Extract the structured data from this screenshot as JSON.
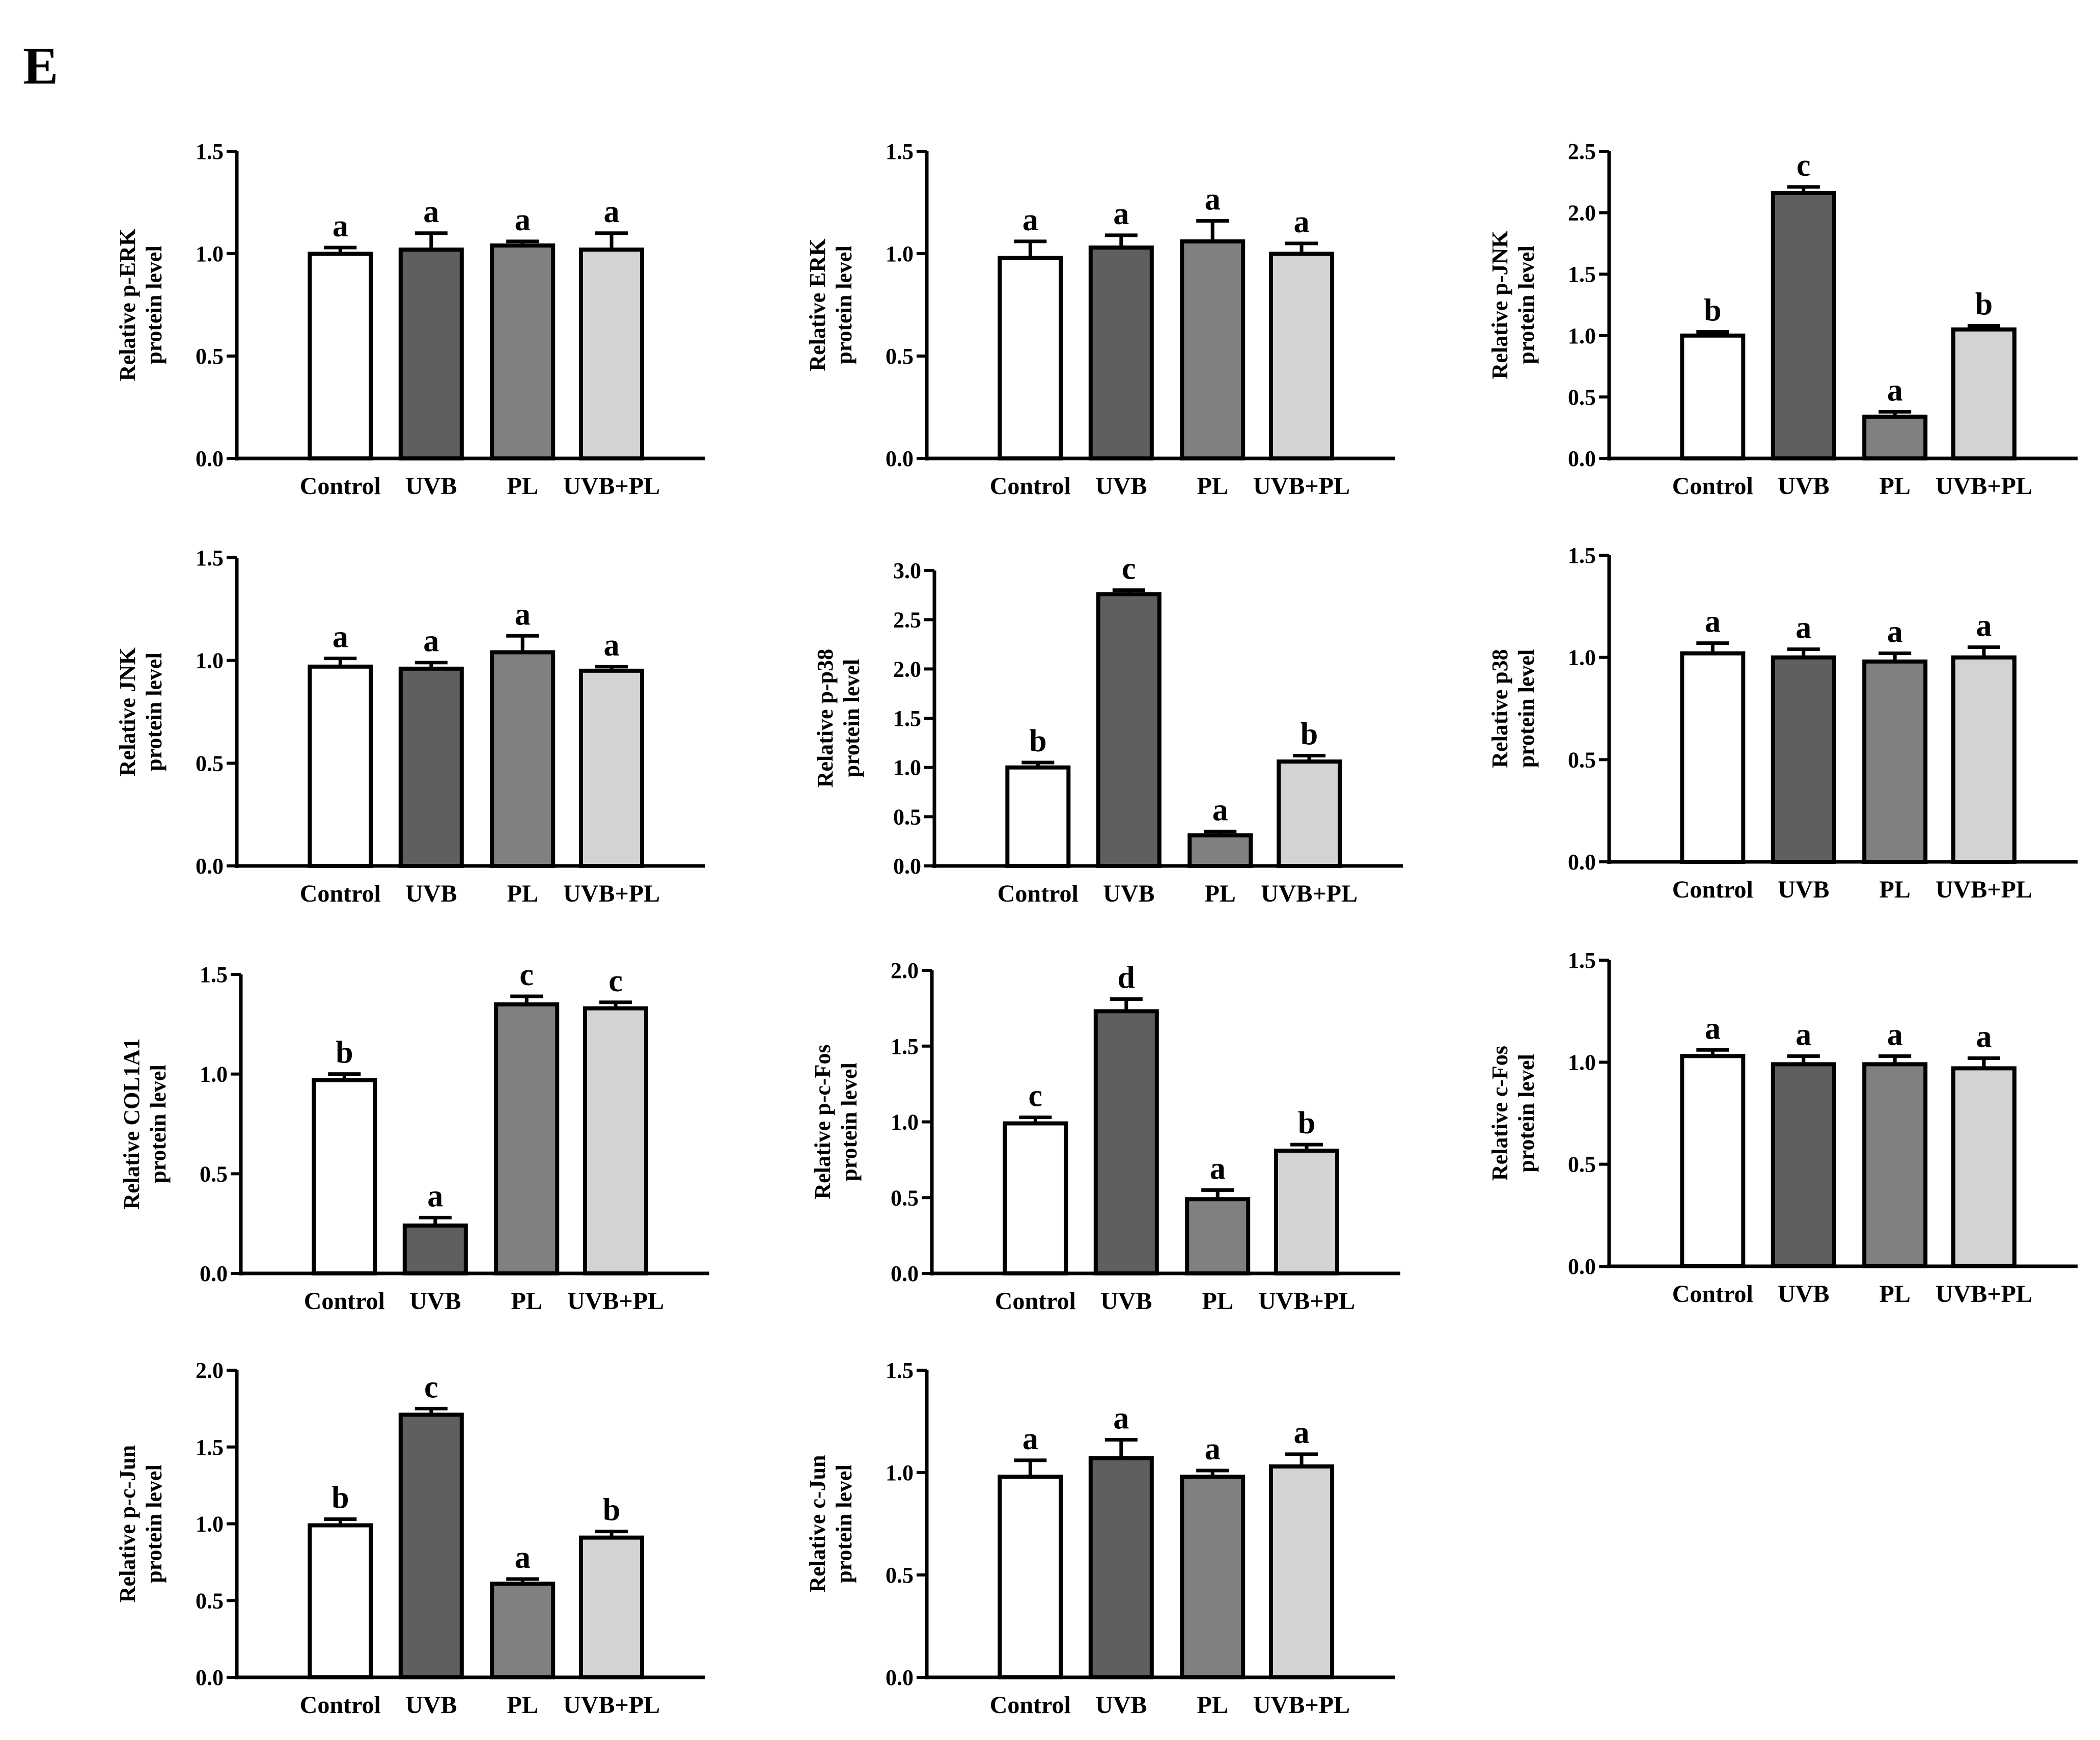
{
  "panel_label": "E",
  "bar_colors": [
    "#ffffff",
    "#5f5f5f",
    "#808080",
    "#d3d3d3"
  ],
  "chart_data": [
    {
      "type": "bar",
      "ylabel": [
        "Relative p-ERK",
        "protein level"
      ],
      "categories": [
        "Control",
        "UVB",
        "PL",
        "UVB+PL"
      ],
      "values": [
        1.0,
        1.02,
        1.04,
        1.02
      ],
      "errors": [
        0.03,
        0.08,
        0.02,
        0.08
      ],
      "letters": [
        "a",
        "a",
        "a",
        "a"
      ],
      "ylim": [
        0,
        1.5
      ],
      "ticks": [
        "0.0",
        "0.5",
        "1.0",
        "1.5"
      ]
    },
    {
      "type": "bar",
      "ylabel": [
        "Relative ERK",
        "protein level"
      ],
      "categories": [
        "Control",
        "UVB",
        "PL",
        "UVB+PL"
      ],
      "values": [
        0.98,
        1.03,
        1.06,
        1.0
      ],
      "errors": [
        0.08,
        0.06,
        0.1,
        0.05
      ],
      "letters": [
        "a",
        "a",
        "a",
        "a"
      ],
      "ylim": [
        0,
        1.5
      ],
      "ticks": [
        "0.0",
        "0.5",
        "1.0",
        "1.5"
      ]
    },
    {
      "type": "bar",
      "ylabel": [
        "Relative p-JNK",
        "protein level"
      ],
      "categories": [
        "Control",
        "UVB",
        "PL",
        "UVB+PL"
      ],
      "values": [
        1.0,
        2.16,
        0.34,
        1.05
      ],
      "errors": [
        0.03,
        0.05,
        0.04,
        0.03
      ],
      "letters": [
        "b",
        "c",
        "a",
        "b"
      ],
      "ylim": [
        0,
        2.5
      ],
      "ticks": [
        "0.0",
        "0.5",
        "1.0",
        "1.5",
        "2.0",
        "2.5"
      ]
    },
    {
      "type": "bar",
      "ylabel": [
        "Relative JNK",
        "protein level"
      ],
      "categories": [
        "Control",
        "UVB",
        "PL",
        "UVB+PL"
      ],
      "values": [
        0.97,
        0.96,
        1.04,
        0.95
      ],
      "errors": [
        0.04,
        0.03,
        0.08,
        0.02
      ],
      "letters": [
        "a",
        "a",
        "a",
        "a"
      ],
      "ylim": [
        0,
        1.5
      ],
      "ticks": [
        "0.0",
        "0.5",
        "1.0",
        "1.5"
      ]
    },
    {
      "type": "bar",
      "ylabel": [
        "Relative p-p38",
        "protein level"
      ],
      "categories": [
        "Control",
        "UVB",
        "PL",
        "UVB+PL"
      ],
      "values": [
        1.0,
        2.76,
        0.31,
        1.06
      ],
      "errors": [
        0.05,
        0.04,
        0.04,
        0.06
      ],
      "letters": [
        "b",
        "c",
        "a",
        "b"
      ],
      "ylim": [
        0,
        3.0
      ],
      "ticks": [
        "0.0",
        "0.5",
        "1.0",
        "1.5",
        "2.0",
        "2.5",
        "3.0"
      ]
    },
    {
      "type": "bar",
      "ylabel": [
        "Relative p38",
        "protein level"
      ],
      "categories": [
        "Control",
        "UVB",
        "PL",
        "UVB+PL"
      ],
      "values": [
        1.02,
        1.0,
        0.98,
        1.0
      ],
      "errors": [
        0.05,
        0.04,
        0.04,
        0.05
      ],
      "letters": [
        "a",
        "a",
        "a",
        "a"
      ],
      "ylim": [
        0,
        1.5
      ],
      "ticks": [
        "0.0",
        "0.5",
        "1.0",
        "1.5"
      ]
    },
    {
      "type": "bar",
      "ylabel": [
        "Relative COL1A1",
        "protein level"
      ],
      "categories": [
        "Control",
        "UVB",
        "PL",
        "UVB+PL"
      ],
      "values": [
        0.97,
        0.24,
        1.35,
        1.33
      ],
      "errors": [
        0.03,
        0.04,
        0.04,
        0.03
      ],
      "letters": [
        "b",
        "a",
        "c",
        "c"
      ],
      "ylim": [
        0,
        1.5
      ],
      "ticks": [
        "0.0",
        "0.5",
        "1.0",
        "1.5"
      ]
    },
    {
      "type": "bar",
      "ylabel": [
        "Relative p-c-Fos",
        "protein level"
      ],
      "categories": [
        "Control",
        "UVB",
        "PL",
        "UVB+PL"
      ],
      "values": [
        0.99,
        1.73,
        0.49,
        0.81
      ],
      "errors": [
        0.04,
        0.08,
        0.06,
        0.04
      ],
      "letters": [
        "c",
        "d",
        "a",
        "b"
      ],
      "ylim": [
        0,
        2.0
      ],
      "ticks": [
        "0.0",
        "0.5",
        "1.0",
        "1.5",
        "2.0"
      ]
    },
    {
      "type": "bar",
      "ylabel": [
        "Relative c-Fos",
        "protein level"
      ],
      "categories": [
        "Control",
        "UVB",
        "PL",
        "UVB+PL"
      ],
      "values": [
        1.03,
        0.99,
        0.99,
        0.97
      ],
      "errors": [
        0.03,
        0.04,
        0.04,
        0.05
      ],
      "letters": [
        "a",
        "a",
        "a",
        "a"
      ],
      "ylim": [
        0,
        1.5
      ],
      "ticks": [
        "0.0",
        "0.5",
        "1.0",
        "1.5"
      ]
    },
    {
      "type": "bar",
      "ylabel": [
        "Relative p-c-Jun",
        "protein level"
      ],
      "categories": [
        "Control",
        "UVB",
        "PL",
        "UVB+PL"
      ],
      "values": [
        0.99,
        1.71,
        0.61,
        0.91
      ],
      "errors": [
        0.04,
        0.04,
        0.03,
        0.04
      ],
      "letters": [
        "b",
        "c",
        "a",
        "b"
      ],
      "ylim": [
        0,
        2.0
      ],
      "ticks": [
        "0.0",
        "0.5",
        "1.0",
        "1.5",
        "2.0"
      ]
    },
    {
      "type": "bar",
      "ylabel": [
        "Relative c-Jun",
        "protein level"
      ],
      "categories": [
        "Control",
        "UVB",
        "PL",
        "UVB+PL"
      ],
      "values": [
        0.98,
        1.07,
        0.98,
        1.03
      ],
      "errors": [
        0.08,
        0.09,
        0.03,
        0.06
      ],
      "letters": [
        "a",
        "a",
        "a",
        "a"
      ],
      "ylim": [
        0,
        1.5
      ],
      "ticks": [
        "0.0",
        "0.5",
        "1.0",
        "1.5"
      ]
    }
  ]
}
